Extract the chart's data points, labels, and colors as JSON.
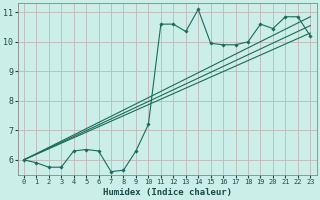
{
  "xlabel": "Humidex (Indice chaleur)",
  "bg_color": "#cceee8",
  "grid_color": "#c0b8b8",
  "line_color": "#1a6b5a",
  "xlim": [
    -0.5,
    23.5
  ],
  "ylim": [
    5.5,
    11.3
  ],
  "xticks": [
    0,
    1,
    2,
    3,
    4,
    5,
    6,
    7,
    8,
    9,
    10,
    11,
    12,
    13,
    14,
    15,
    16,
    17,
    18,
    19,
    20,
    21,
    22,
    23
  ],
  "yticks": [
    6,
    7,
    8,
    9,
    10,
    11
  ],
  "line1_x": [
    0,
    1,
    2,
    3,
    4,
    5,
    6,
    7,
    8,
    9,
    10,
    11,
    12,
    13,
    14,
    15,
    16,
    17,
    18,
    19,
    20,
    21,
    22,
    23
  ],
  "line1_y": [
    6.0,
    5.9,
    5.75,
    5.75,
    6.3,
    6.35,
    6.3,
    5.6,
    5.65,
    6.3,
    7.2,
    10.6,
    10.6,
    10.35,
    11.1,
    9.95,
    9.9,
    9.9,
    10.0,
    10.6,
    10.45,
    10.85,
    10.85,
    10.2
  ],
  "line2_x": [
    0,
    23
  ],
  "line2_y": [
    6.0,
    10.3
  ],
  "line3_x": [
    0,
    23
  ],
  "line3_y": [
    6.0,
    10.55
  ],
  "line4_x": [
    0,
    23
  ],
  "line4_y": [
    6.0,
    10.85
  ]
}
